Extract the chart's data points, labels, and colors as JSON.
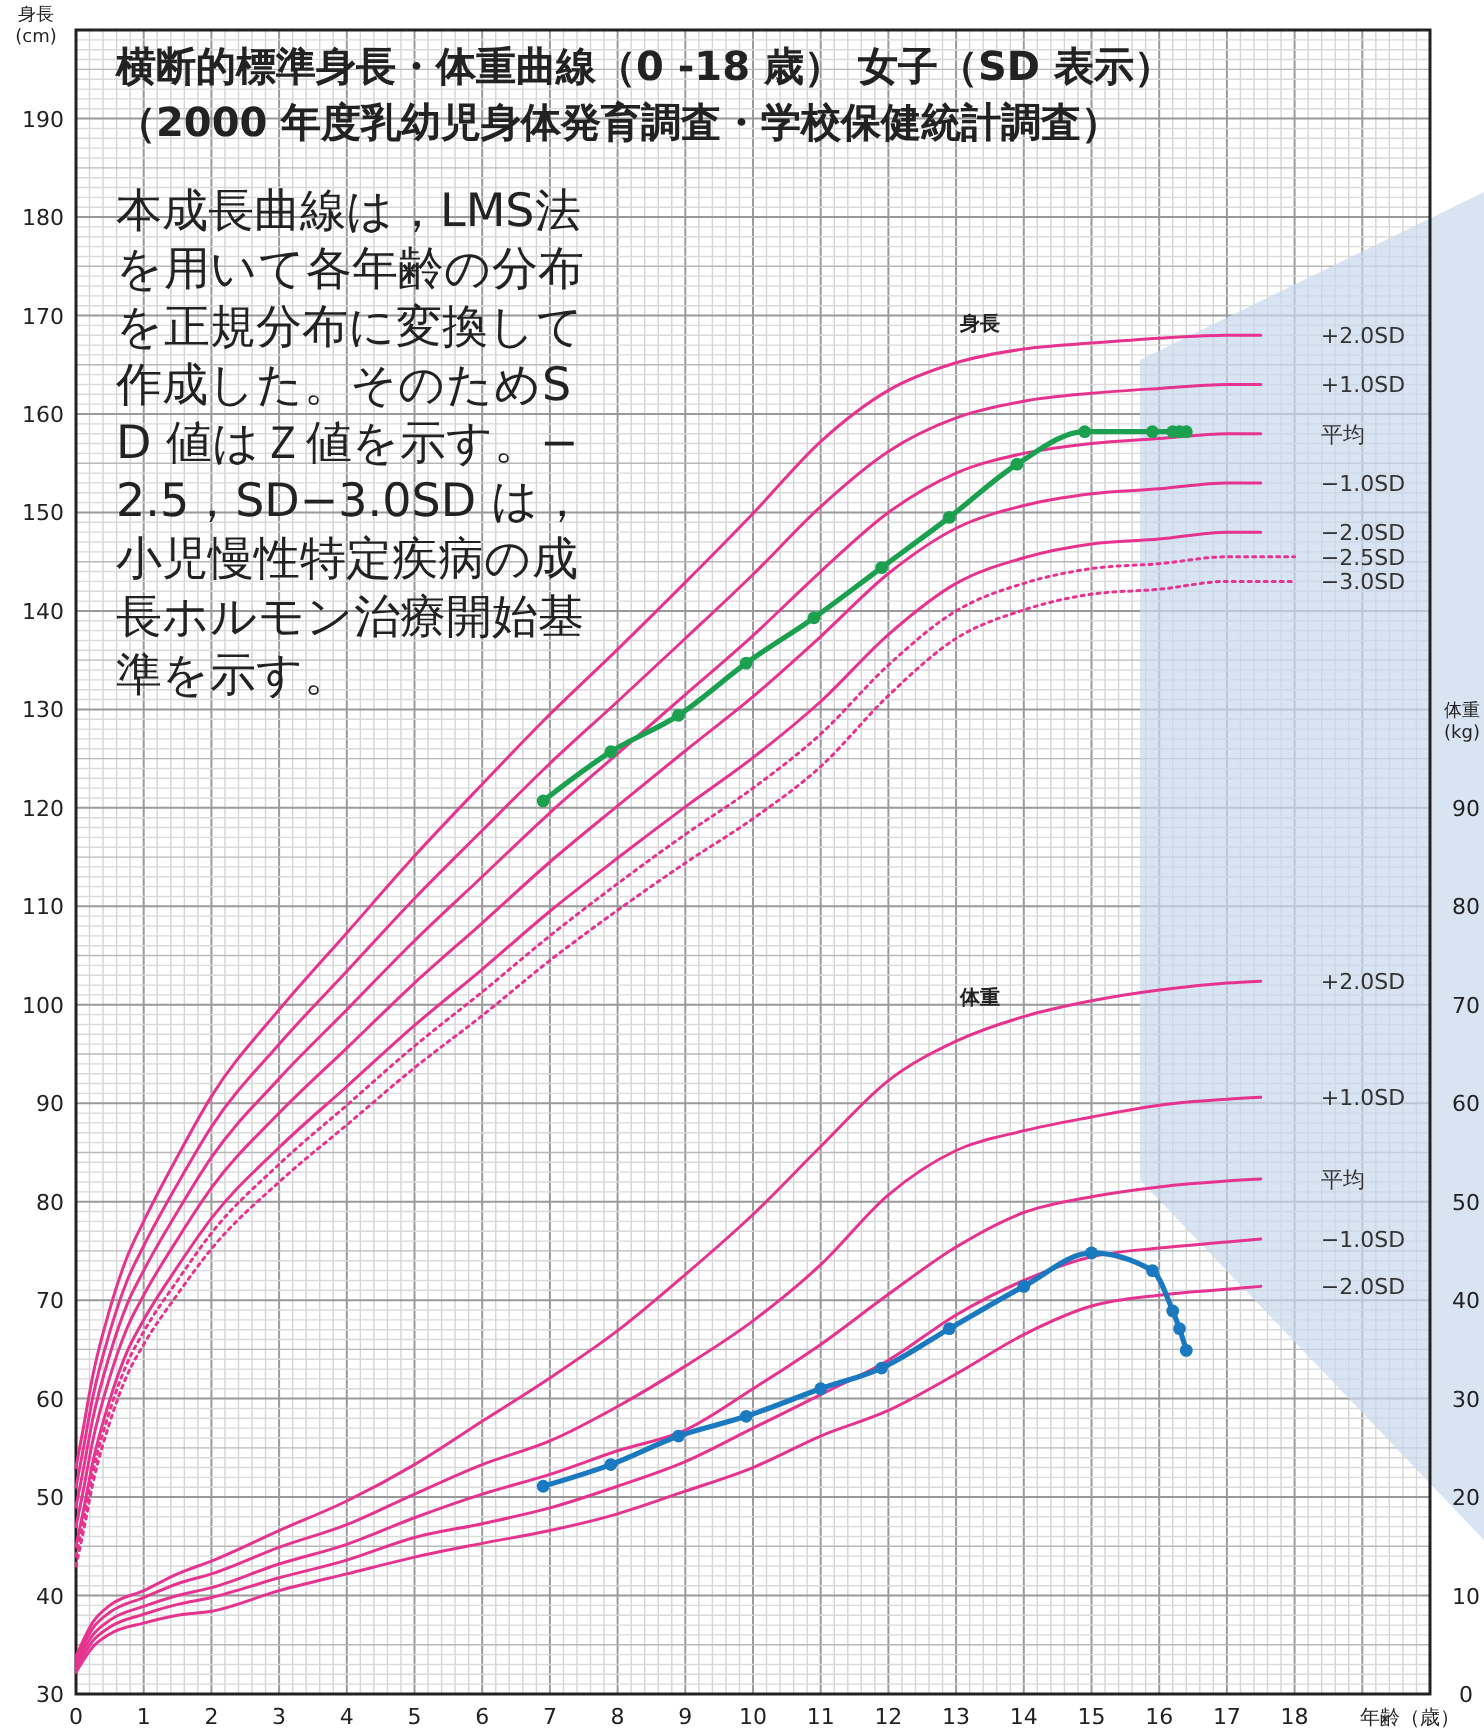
{
  "chart_data": {
    "type": "line",
    "title": "横断的標準身長・体重曲線（0 -18 歳） 女子（SD 表示）",
    "subtitle": "（2000 年度乳幼児身体発育調査・学校保健統計調査）",
    "xlabel": "年齢（歳）",
    "ylabel": "身長(cm)",
    "y2label": "体重(kg)",
    "annotations": [
      "本成長曲線は，LMS法を用いて各年齢の分布を正規分布に変換して作成した。そのためSD 値はＺ値を示す。−2.5，SD−3.0SD は，小児慢性特定疾病の成長ホルモン治療開始基準を示す。",
      "身長",
      "体重"
    ],
    "x": [
      0,
      0.1,
      0.25,
      0.5,
      0.75,
      1,
      1.5,
      2,
      3,
      4,
      5,
      6,
      7,
      8,
      9,
      10,
      11,
      12,
      13,
      14,
      15,
      16,
      17,
      17.5
    ],
    "xlim": [
      0,
      20
    ],
    "xticks": [
      0,
      1,
      2,
      3,
      4,
      5,
      6,
      7,
      8,
      9,
      10,
      11,
      12,
      13,
      14,
      15,
      16,
      17,
      18
    ],
    "ylim": [
      30,
      199
    ],
    "yticks": [
      30,
      40,
      50,
      60,
      70,
      80,
      90,
      100,
      110,
      120,
      130,
      140,
      150,
      160,
      170,
      180,
      190
    ],
    "y2lim": [
      0,
      169
    ],
    "y2ticks": [
      0,
      10,
      20,
      30,
      40,
      50,
      60,
      70,
      80,
      90
    ],
    "grid": true,
    "marker": "none",
    "line_style": "solid",
    "series": [
      {
        "name": "+2.0SD",
        "color": "#e6338f",
        "values": [
          53.0,
          56.7,
          62.4,
          69.1,
          74.3,
          78.0,
          84.6,
          90.7,
          99.5,
          107.3,
          115.1,
          122.4,
          129.5,
          136.1,
          142.9,
          149.9,
          157.2,
          162.4,
          165.2,
          166.6,
          167.2,
          167.7,
          168.0,
          168.0
        ]
      },
      {
        "name": "+1.0SD",
        "color": "#e6338f",
        "values": [
          51.0,
          54.6,
          60.2,
          66.8,
          71.9,
          75.5,
          81.8,
          87.6,
          96.0,
          103.4,
          110.8,
          117.7,
          124.5,
          130.8,
          137.2,
          143.7,
          150.6,
          156.2,
          159.6,
          161.3,
          162.1,
          162.6,
          163.0,
          163.0
        ]
      },
      {
        "name": "平均",
        "color": "#e6338f",
        "values": [
          49.0,
          52.5,
          58.0,
          64.5,
          69.5,
          73.0,
          79.0,
          84.5,
          92.5,
          99.5,
          106.5,
          113.0,
          119.5,
          125.5,
          131.5,
          137.5,
          144.0,
          150.0,
          154.0,
          156.0,
          157.0,
          157.5,
          158.0,
          158.0
        ]
      },
      {
        "name": "−1.0SD",
        "color": "#e6338f",
        "values": [
          47.0,
          50.4,
          55.8,
          62.2,
          67.1,
          70.5,
          76.2,
          81.4,
          89.0,
          95.6,
          102.2,
          108.3,
          114.5,
          120.2,
          125.8,
          131.3,
          137.4,
          143.8,
          148.4,
          150.7,
          151.9,
          152.4,
          153.0,
          153.0
        ]
      },
      {
        "name": "−2.0SD",
        "color": "#e6338f",
        "values": [
          45.0,
          48.3,
          53.6,
          59.9,
          64.7,
          68.0,
          73.4,
          78.3,
          85.5,
          91.7,
          97.9,
          103.6,
          109.5,
          114.9,
          120.1,
          125.1,
          130.8,
          137.6,
          142.8,
          145.4,
          146.8,
          147.3,
          148.0,
          148.0
        ]
      },
      {
        "name": "−2.5SD",
        "color": "#e6338f",
        "line_style": "dotted",
        "x": [
          0,
          0.1,
          0.25,
          0.5,
          0.75,
          1,
          1.5,
          2,
          3,
          4,
          5,
          6,
          7,
          8,
          9,
          10,
          11,
          12,
          13,
          14,
          15,
          16,
          17,
          17.5,
          18
        ],
        "values": [
          44.0,
          47.3,
          52.5,
          58.8,
          63.5,
          66.8,
          72.0,
          76.8,
          83.8,
          89.8,
          95.8,
          101.3,
          107.0,
          112.3,
          117.3,
          122.0,
          127.5,
          134.5,
          140.0,
          142.8,
          144.3,
          144.8,
          145.5,
          145.5,
          145.5
        ]
      },
      {
        "name": "−3.0SD",
        "color": "#e6338f",
        "line_style": "dotted",
        "x": [
          0,
          0.1,
          0.25,
          0.5,
          0.75,
          1,
          1.5,
          2,
          3,
          4,
          5,
          6,
          7,
          8,
          9,
          10,
          11,
          12,
          13,
          14,
          15,
          16,
          17,
          17.5,
          18
        ],
        "values": [
          43.0,
          46.2,
          51.4,
          57.6,
          62.3,
          65.5,
          70.6,
          75.2,
          82.0,
          87.8,
          93.6,
          98.9,
          104.5,
          109.6,
          114.4,
          118.9,
          124.2,
          131.4,
          137.2,
          140.1,
          141.7,
          142.2,
          143.0,
          143.0,
          143.0
        ]
      },
      {
        "name": "+2.0SD",
        "color": "#e6338f",
        "axis": "y2",
        "x": [
          0,
          0.25,
          0.5,
          1,
          1.5,
          2,
          3,
          4,
          5,
          6,
          7,
          8,
          9,
          10,
          11,
          12,
          13,
          14,
          15,
          16,
          17,
          17.5
        ],
        "values": [
          3.8,
          7.3,
          9.0,
          10.5,
          12.2,
          13.5,
          16.6,
          19.6,
          23.3,
          27.7,
          32.1,
          36.9,
          42.6,
          48.7,
          55.6,
          62.3,
          66.3,
          68.8,
          70.4,
          71.5,
          72.2,
          72.4
        ]
      },
      {
        "name": "+1.0SD",
        "color": "#e6338f",
        "axis": "y2",
        "x": [
          0,
          0.25,
          0.5,
          1,
          1.5,
          2,
          3,
          4,
          5,
          6,
          7,
          8,
          9,
          10,
          11,
          12,
          13,
          14,
          15,
          16,
          17,
          17.5
        ],
        "values": [
          3.4,
          6.7,
          8.3,
          9.8,
          11.2,
          12.2,
          14.9,
          17.2,
          20.3,
          23.3,
          25.7,
          29.2,
          33.3,
          37.9,
          43.6,
          50.7,
          55.2,
          57.2,
          58.6,
          59.8,
          60.4,
          60.6
        ]
      },
      {
        "name": "平均",
        "color": "#e6338f",
        "axis": "y2",
        "x": [
          0,
          0.25,
          0.5,
          1,
          1.5,
          2,
          3,
          4,
          5,
          6,
          7,
          8,
          9,
          10,
          11,
          12,
          13,
          14,
          15,
          16,
          17,
          17.5
        ],
        "values": [
          3.0,
          6.0,
          7.5,
          8.9,
          10.0,
          10.8,
          13.2,
          15.2,
          17.9,
          20.3,
          22.3,
          24.7,
          26.8,
          31.0,
          35.5,
          40.6,
          45.4,
          48.9,
          50.5,
          51.5,
          52.1,
          52.3
        ]
      },
      {
        "name": "−1.0SD",
        "color": "#e6338f",
        "axis": "y2",
        "x": [
          0,
          0.25,
          0.5,
          1,
          1.5,
          2,
          3,
          4,
          5,
          6,
          7,
          8,
          9,
          10,
          11,
          12,
          13,
          14,
          15,
          16,
          17,
          17.5
        ],
        "values": [
          2.6,
          5.4,
          6.8,
          8.1,
          9.1,
          9.8,
          11.8,
          13.6,
          15.9,
          17.3,
          18.9,
          21.1,
          23.6,
          27.0,
          30.4,
          33.9,
          38.5,
          42.0,
          44.4,
          45.3,
          45.9,
          46.2
        ]
      },
      {
        "name": "−2.0SD",
        "color": "#e6338f",
        "axis": "y2",
        "x": [
          0,
          0.25,
          0.5,
          1,
          1.5,
          2,
          3,
          4,
          5,
          6,
          7,
          8,
          9,
          10,
          11,
          12,
          13,
          14,
          15,
          16,
          17,
          17.5
        ],
        "values": [
          2.2,
          4.8,
          6.1,
          7.2,
          8.0,
          8.4,
          10.5,
          12.2,
          13.9,
          15.3,
          16.6,
          18.3,
          20.6,
          23.0,
          26.2,
          28.8,
          32.5,
          36.5,
          39.4,
          40.5,
          41.1,
          41.4
        ]
      },
      {
        "color": "#1ba04f",
        "marker": "circle",
        "x": [
          6.9,
          7.9,
          8.9,
          9.9,
          10.9,
          11.9,
          12.9,
          13.9,
          14.9,
          15.9,
          16.2,
          16.3,
          16.4
        ],
        "values": [
          120.7,
          125.7,
          129.4,
          134.7,
          139.3,
          144.4,
          149.5,
          154.9,
          158.2,
          158.2,
          158.2,
          158.2,
          158.2
        ]
      },
      {
        "color": "#1b79c0",
        "marker": "circle",
        "axis": "y2",
        "x": [
          6.9,
          7.9,
          8.9,
          9.9,
          11.0,
          11.9,
          12.9,
          14.0,
          15.0,
          15.9,
          16.2,
          16.3,
          16.4
        ],
        "values": [
          21.1,
          23.3,
          26.2,
          28.2,
          31.0,
          33.1,
          37.1,
          41.4,
          44.8,
          43.0,
          38.9,
          37.1,
          34.9
        ]
      }
    ]
  }
}
